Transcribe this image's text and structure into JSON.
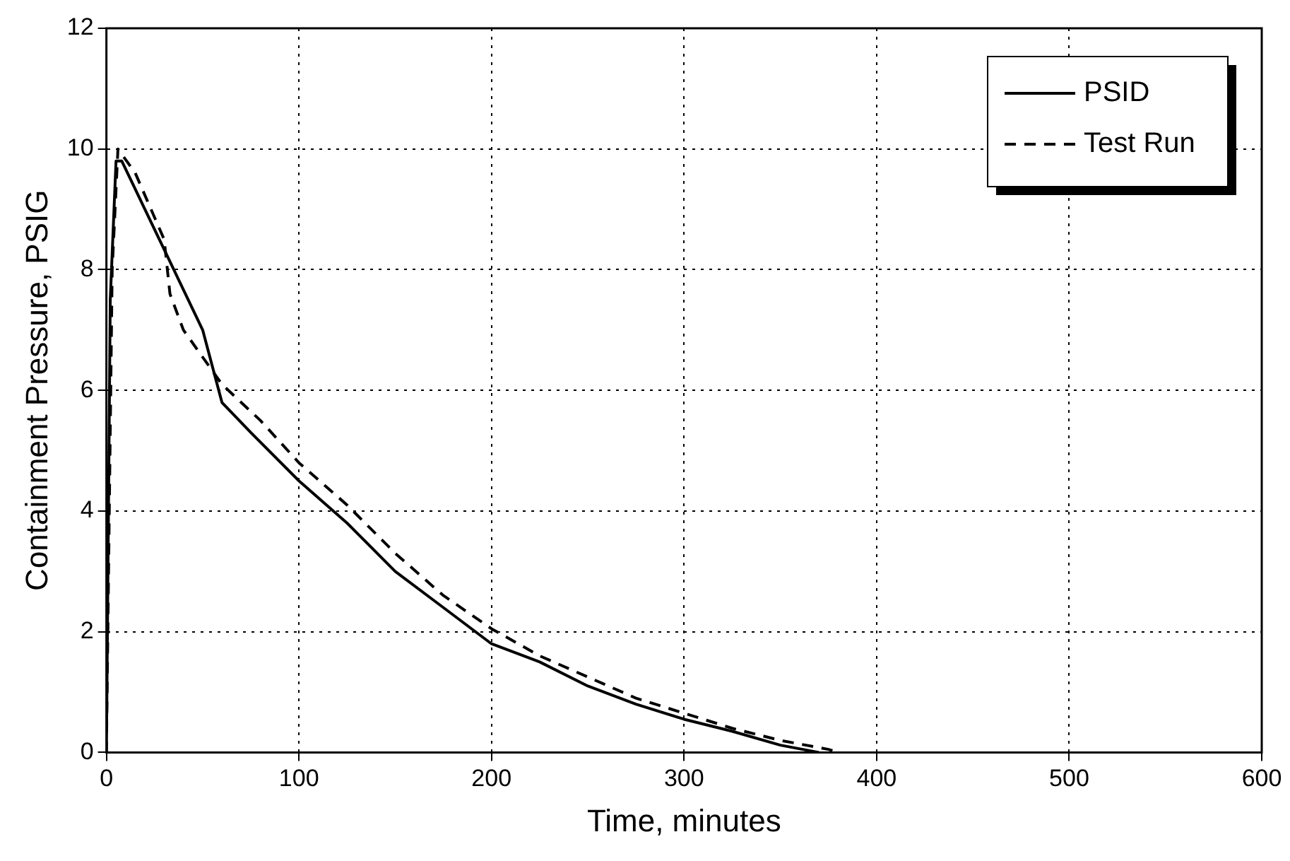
{
  "chart_data": {
    "type": "line",
    "xlabel": "Time, minutes",
    "ylabel": "Containment Pressure, PSIG",
    "xlim": [
      0,
      600
    ],
    "xticks": [
      0,
      100,
      200,
      300,
      400,
      500,
      600
    ],
    "ylim": [
      0,
      12
    ],
    "yticks": [
      0,
      2,
      4,
      6,
      8,
      10,
      12
    ],
    "grid": true,
    "legend": "top right",
    "series": [
      {
        "name": "PSID",
        "color": "#000000",
        "line_style": "solid",
        "x": [
          0,
          2,
          5,
          8,
          20,
          35,
          50,
          60,
          75,
          100,
          125,
          150,
          175,
          200,
          225,
          250,
          275,
          300,
          325,
          350,
          370
        ],
        "values": [
          0,
          7.5,
          9.8,
          9.8,
          9,
          8,
          7,
          5.8,
          5.3,
          4.5,
          3.8,
          3.0,
          2.4,
          1.8,
          1.5,
          1.1,
          0.8,
          0.55,
          0.35,
          0.12,
          0
        ]
      },
      {
        "name": "Test Run",
        "color": "#000000",
        "line_style": "dashed",
        "x": [
          0,
          3,
          6,
          15,
          30,
          33,
          40,
          60,
          80,
          100,
          125,
          150,
          175,
          200,
          225,
          250,
          275,
          300,
          325,
          350,
          375,
          380
        ],
        "values": [
          0,
          8,
          10,
          9.6,
          8.5,
          7.6,
          7.0,
          6.1,
          5.5,
          4.8,
          4.1,
          3.3,
          2.6,
          2.05,
          1.6,
          1.25,
          0.9,
          0.65,
          0.4,
          0.2,
          0.05,
          0
        ]
      }
    ]
  }
}
